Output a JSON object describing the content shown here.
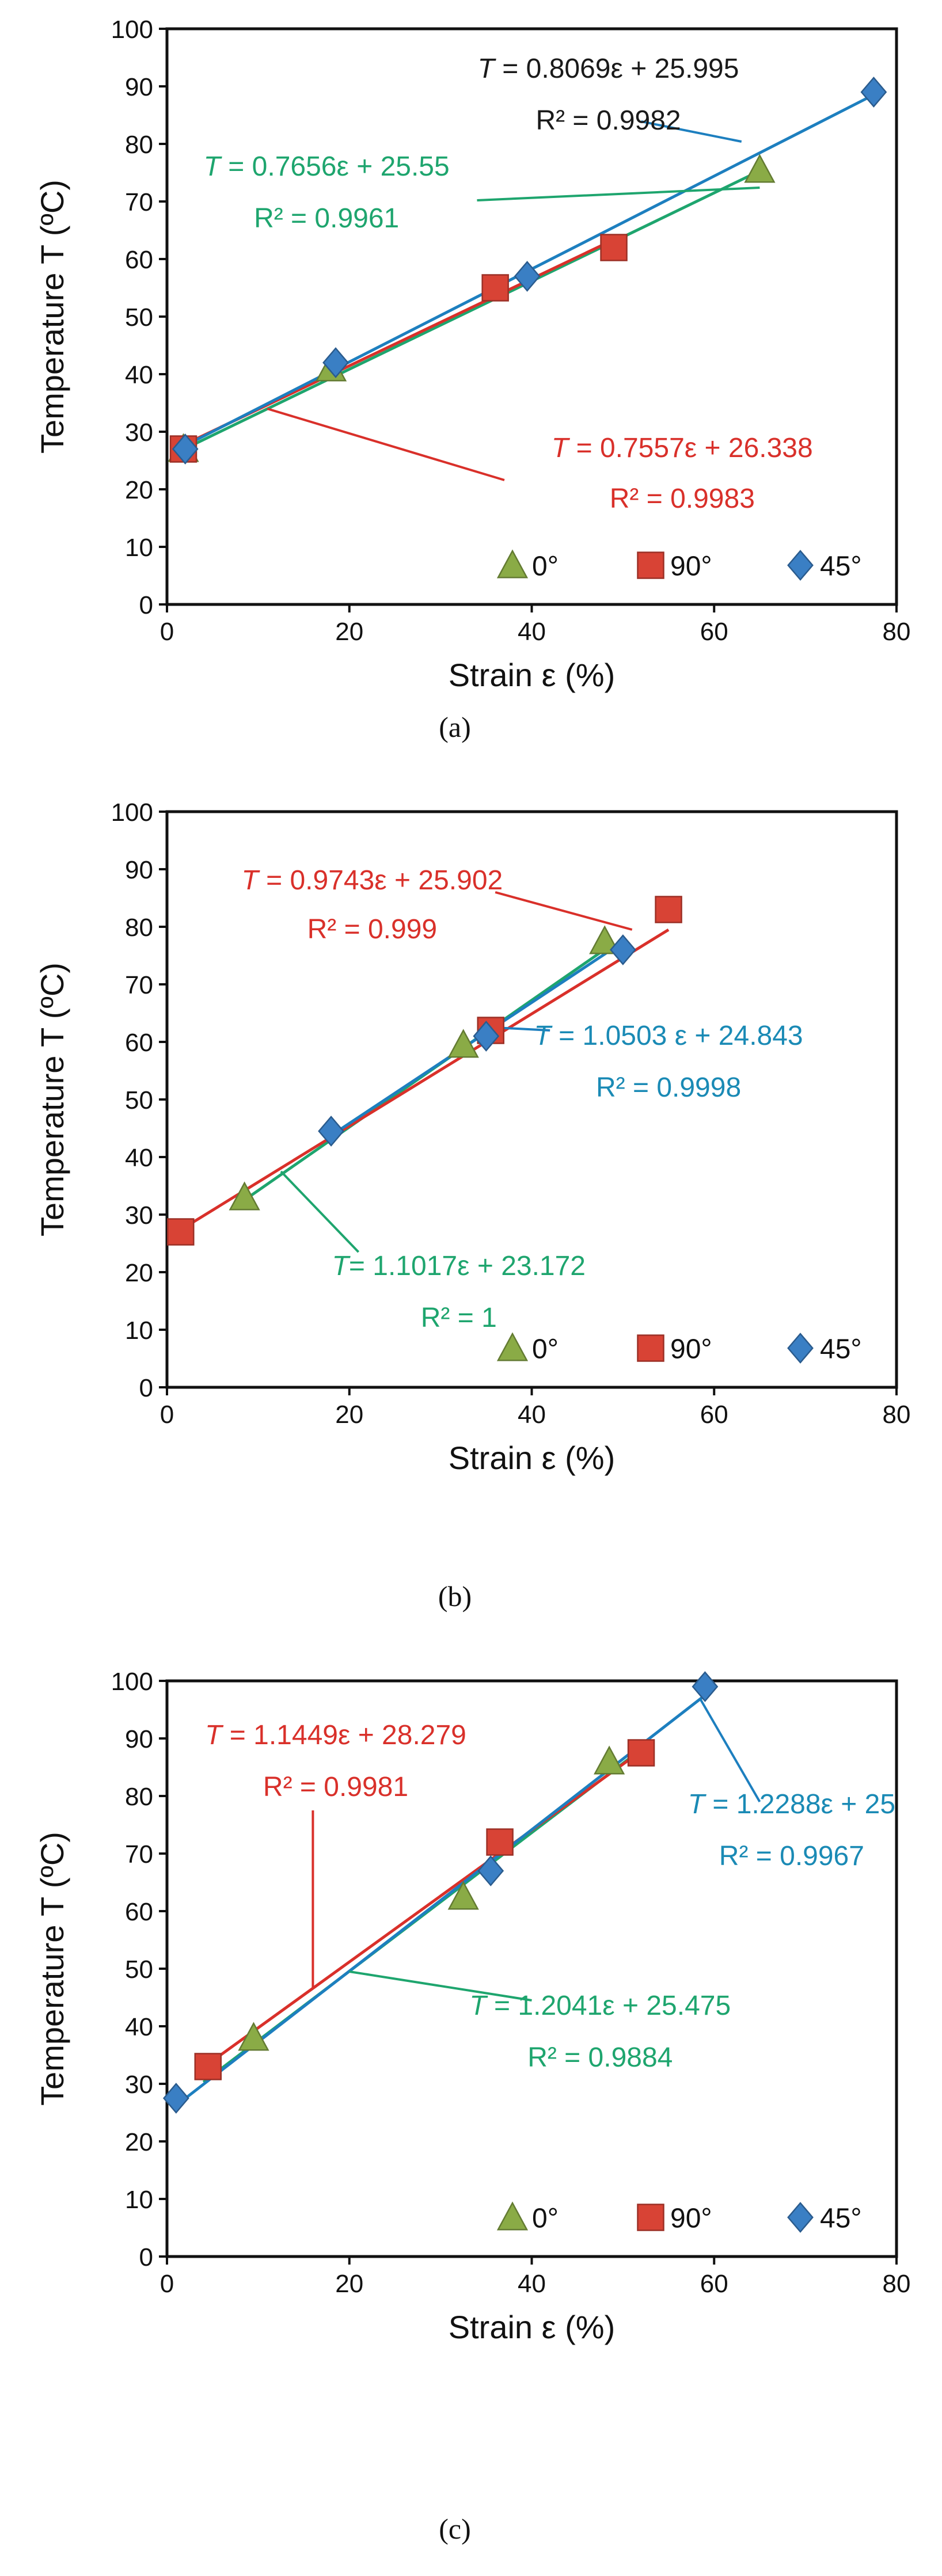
{
  "chart_data": [
    {
      "id": "a",
      "type": "scatter",
      "caption_letter": "a",
      "xlabel": "Strain ε (%)",
      "ylabel": "Temperature T (ºC)",
      "xlim": [
        0,
        80
      ],
      "ylim": [
        0,
        100
      ],
      "xticks": [
        "0",
        "20",
        "40",
        "60",
        "80"
      ],
      "yticks": [
        "0",
        "10",
        "20",
        "30",
        "40",
        "50",
        "60",
        "70",
        "80",
        "90",
        "100"
      ],
      "legend": [
        {
          "label": "0°",
          "marker": "triangle",
          "color": "#8aab46"
        },
        {
          "label": "90°",
          "marker": "square",
          "color": "#d84335"
        },
        {
          "label": "45°",
          "marker": "diamond",
          "color": "#3a7fc4"
        }
      ],
      "series": [
        {
          "name": "0°",
          "marker": "triangle",
          "color": "#8aab46",
          "line_color": "#1ea56e",
          "points": [
            [
              1.8,
              27
            ],
            [
              18,
              41
            ],
            [
              65,
              75.5
            ]
          ],
          "fit": {
            "slope": 0.7656,
            "intercept": 25.55,
            "x_range": [
              1.8,
              65
            ]
          }
        },
        {
          "name": "90°",
          "marker": "square",
          "color": "#d84335",
          "line_color": "#d9302a",
          "points": [
            [
              1.8,
              27
            ],
            [
              36,
              55
            ],
            [
              49,
              62
            ]
          ],
          "fit": {
            "slope": 0.7557,
            "intercept": 26.338,
            "x_range": [
              1.8,
              49
            ]
          }
        },
        {
          "name": "45°",
          "marker": "diamond",
          "color": "#3a7fc4",
          "line_color": "#1d7fbf",
          "points": [
            [
              2,
              27
            ],
            [
              18.5,
              42
            ],
            [
              39.5,
              57
            ],
            [
              77.5,
              89
            ]
          ],
          "fit": {
            "slope": 0.8069,
            "intercept": 25.995,
            "x_range": [
              2,
              77.5
            ]
          }
        }
      ],
      "annotations": [
        {
          "series": "45°",
          "color": "#1a1a1a",
          "line_color": "#1d7fbf",
          "eq_pre": "T",
          "eq_post": " = 0.8069ε + 25.995",
          "r2": "R² = 0.9982",
          "eq_at": [
            48.4,
            91.5
          ],
          "r2_at": [
            48.4,
            82.5
          ],
          "anchor": "middle",
          "leader": [
            [
              52,
              83.9
            ],
            [
              63,
              80.4
            ]
          ]
        },
        {
          "series": "0°",
          "color": "#1ea56e",
          "line_color": "#1ea56e",
          "eq_pre": "T",
          "eq_post": " = 0.7656ε + 25.55",
          "r2": "R² = 0.9961",
          "eq_at": [
            17.5,
            74.5
          ],
          "r2_at": [
            17.5,
            65.5
          ],
          "anchor": "middle",
          "leader": [
            [
              34,
              70.2
            ],
            [
              65,
              72.4
            ]
          ]
        },
        {
          "series": "90°",
          "color": "#d9302a",
          "line_color": "#d9302a",
          "eq_pre": "T",
          "eq_post": " = 0.7557ε + 26.338",
          "r2": "R² = 0.9983",
          "eq_at": [
            56.5,
            25.6
          ],
          "r2_at": [
            56.5,
            16.8
          ],
          "anchor": "middle",
          "leader": [
            [
              37,
              21.6
            ],
            [
              11,
              34
            ]
          ]
        }
      ]
    },
    {
      "id": "b",
      "type": "scatter",
      "caption_letter": "b",
      "xlabel": "Strain ε (%)",
      "ylabel": "Temperature T (ºC)",
      "xlim": [
        0,
        80
      ],
      "ylim": [
        0,
        100
      ],
      "xticks": [
        "0",
        "20",
        "40",
        "60",
        "80"
      ],
      "yticks": [
        "0",
        "10",
        "20",
        "30",
        "40",
        "50",
        "60",
        "70",
        "80",
        "90",
        "100"
      ],
      "legend": [
        {
          "label": "0°",
          "marker": "triangle",
          "color": "#8aab46"
        },
        {
          "label": "90°",
          "marker": "square",
          "color": "#d84335"
        },
        {
          "label": "45°",
          "marker": "diamond",
          "color": "#3a7fc4"
        }
      ],
      "series": [
        {
          "name": "0°",
          "marker": "triangle",
          "color": "#8aab46",
          "line_color": "#1ea56e",
          "points": [
            [
              8.5,
              33
            ],
            [
              32.5,
              59.5
            ],
            [
              48,
              77.5
            ]
          ],
          "fit": {
            "slope": 1.1017,
            "intercept": 23.172,
            "x_range": [
              8.5,
              48
            ]
          }
        },
        {
          "name": "90°",
          "marker": "square",
          "color": "#d84335",
          "line_color": "#d9302a",
          "points": [
            [
              1.5,
              27
            ],
            [
              35.5,
              62
            ],
            [
              55,
              83
            ]
          ],
          "fit": {
            "slope": 0.9743,
            "intercept": 25.902,
            "x_range": [
              1.5,
              55
            ]
          }
        },
        {
          "name": "45°",
          "marker": "diamond",
          "color": "#3a7fc4",
          "line_color": "#1d7fbf",
          "points": [
            [
              18,
              44.5
            ],
            [
              35,
              61
            ],
            [
              50,
              76
            ]
          ],
          "fit": {
            "slope": 1.0503,
            "intercept": 24.843,
            "x_range": [
              18,
              50
            ]
          }
        }
      ],
      "annotations": [
        {
          "series": "90°",
          "color": "#d9302a",
          "line_color": "#d9302a",
          "eq_pre": "T",
          "eq_post": " = 0.9743ε + 25.902",
          "r2": "R² = 0.999",
          "eq_at": [
            22.5,
            86.5
          ],
          "r2_at": [
            22.5,
            78
          ],
          "anchor": "middle",
          "leader": [
            [
              36,
              86
            ],
            [
              51,
              79.5
            ]
          ]
        },
        {
          "series": "45°",
          "color": "#1a8ab5",
          "line_color": "#1d7fbf",
          "eq_pre": "T",
          "eq_post": " = 1.0503 ε + 24.843",
          "r2": "R² = 0.9998",
          "eq_at": [
            55,
            59.5
          ],
          "r2_at": [
            55,
            50.5
          ],
          "anchor": "middle",
          "leader": [
            [
              42,
              62
            ],
            [
              36,
              62.5
            ]
          ]
        },
        {
          "series": "0°",
          "color": "#1ea56e",
          "line_color": "#1ea56e",
          "eq_pre": "T",
          "eq_post": "= 1.1017ε + 23.172",
          "r2": "R² = 1",
          "eq_at": [
            32,
            19.5
          ],
          "r2_at": [
            32,
            10.5
          ],
          "anchor": "middle",
          "leader": [
            [
              21,
              23.5
            ],
            [
              12.5,
              37.5
            ]
          ]
        }
      ]
    },
    {
      "id": "c",
      "type": "scatter",
      "caption_letter": "c",
      "xlabel": "Strain ε (%)",
      "ylabel": "Temperature T (ºC)",
      "xlim": [
        0,
        80
      ],
      "ylim": [
        0,
        100
      ],
      "xticks": [
        "0",
        "20",
        "40",
        "60",
        "80"
      ],
      "yticks": [
        "0",
        "10",
        "20",
        "30",
        "40",
        "50",
        "60",
        "70",
        "80",
        "90",
        "100"
      ],
      "legend": [
        {
          "label": "0°",
          "marker": "triangle",
          "color": "#8aab46"
        },
        {
          "label": "90°",
          "marker": "square",
          "color": "#d84335"
        },
        {
          "label": "45°",
          "marker": "diamond",
          "color": "#3a7fc4"
        }
      ],
      "series": [
        {
          "name": "0°",
          "marker": "triangle",
          "color": "#8aab46",
          "line_color": "#1ea56e",
          "points": [
            [
              9.5,
              38
            ],
            [
              32.5,
              62.5
            ],
            [
              48.5,
              86
            ]
          ],
          "fit": {
            "slope": 1.2041,
            "intercept": 25.475,
            "x_range": [
              4,
              52
            ]
          }
        },
        {
          "name": "90°",
          "marker": "square",
          "color": "#d84335",
          "line_color": "#d9302a",
          "points": [
            [
              4.5,
              33
            ],
            [
              36.5,
              72
            ],
            [
              52,
              87.5
            ]
          ],
          "fit": {
            "slope": 1.1449,
            "intercept": 28.279,
            "x_range": [
              4.5,
              52
            ]
          }
        },
        {
          "name": "45°",
          "marker": "diamond",
          "color": "#3a7fc4",
          "line_color": "#1d7fbf",
          "points": [
            [
              1,
              27.5
            ],
            [
              35.5,
              67
            ],
            [
              59,
              99
            ]
          ],
          "fit": {
            "slope": 1.2288,
            "intercept": 25,
            "x_range": [
              1,
              59
            ]
          }
        }
      ],
      "annotations": [
        {
          "series": "90°",
          "color": "#d9302a",
          "line_color": "#d9302a",
          "eq_pre": "T",
          "eq_post": " = 1.1449ε + 28.279",
          "r2": "R² = 0.9981",
          "eq_at": [
            18.5,
            89
          ],
          "r2_at": [
            18.5,
            80
          ],
          "anchor": "middle",
          "leader": [
            [
              16,
              77.5
            ],
            [
              16,
              46.6
            ]
          ]
        },
        {
          "series": "45°",
          "color": "#1a8ab5",
          "line_color": "#1d7fbf",
          "eq_pre": "T",
          "eq_post": " = 1.2288ε + 25",
          "r2": "R² = 0.9967",
          "eq_at": [
            68.5,
            77
          ],
          "r2_at": [
            68.5,
            68
          ],
          "anchor": "middle",
          "leader": [
            [
              65,
              79
            ],
            [
              58.5,
              96.8
            ]
          ]
        },
        {
          "series": "0°",
          "color": "#1ea56e",
          "line_color": "#1ea56e",
          "eq_pre": "T",
          "eq_post": " = 1.2041ε + 25.475",
          "r2": "R² = 0.9884",
          "eq_at": [
            47.5,
            42
          ],
          "r2_at": [
            47.5,
            33
          ],
          "anchor": "middle",
          "leader": [
            [
              40,
              44.5
            ],
            [
              20,
              49.5
            ]
          ]
        }
      ]
    }
  ]
}
